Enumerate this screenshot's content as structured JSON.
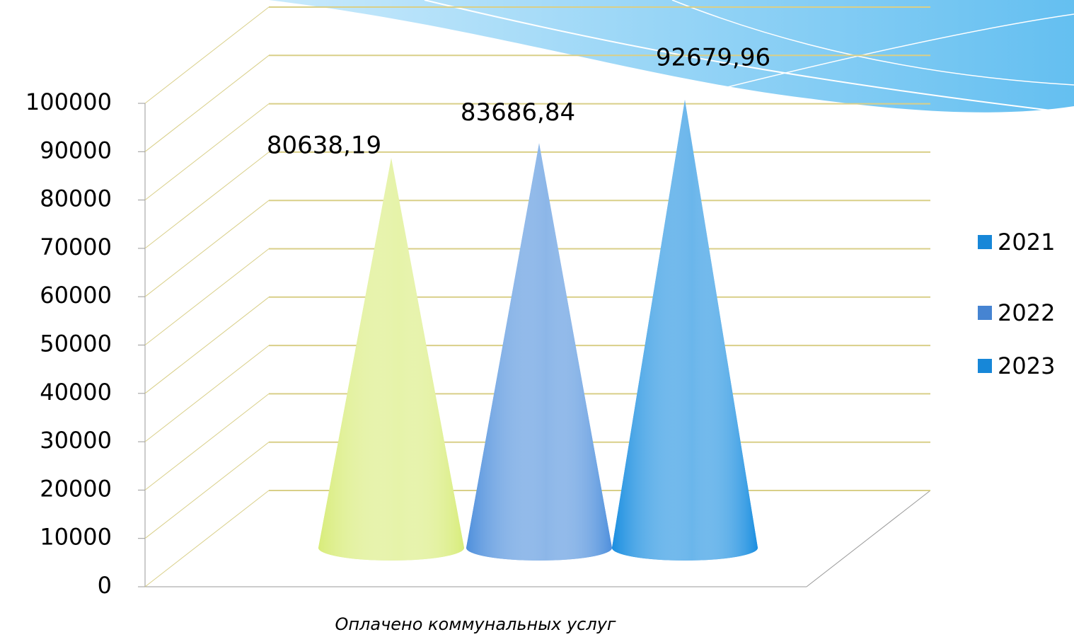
{
  "chart_data": {
    "type": "cone",
    "categories": [
      "Оплачено коммунальных услуг"
    ],
    "series": [
      {
        "name": "2021",
        "color": "#d8ec7a",
        "legend_color": "#1787d8",
        "values": [
          80638.19
        ],
        "value_labels": [
          "80638,19"
        ]
      },
      {
        "name": "2022",
        "color": "#4e8fdc",
        "legend_color": "#4684d2",
        "values": [
          83686.84
        ],
        "value_labels": [
          "83686,84"
        ]
      },
      {
        "name": "2023",
        "color": "#1a8ee0",
        "legend_color": "#1787d8",
        "values": [
          92679.96
        ],
        "value_labels": [
          "92679,96"
        ]
      }
    ],
    "ylim": [
      0,
      100000
    ],
    "yticks": [
      0,
      10000,
      20000,
      30000,
      40000,
      50000,
      60000,
      70000,
      80000,
      90000,
      100000
    ],
    "grid": true,
    "legend": "right"
  }
}
